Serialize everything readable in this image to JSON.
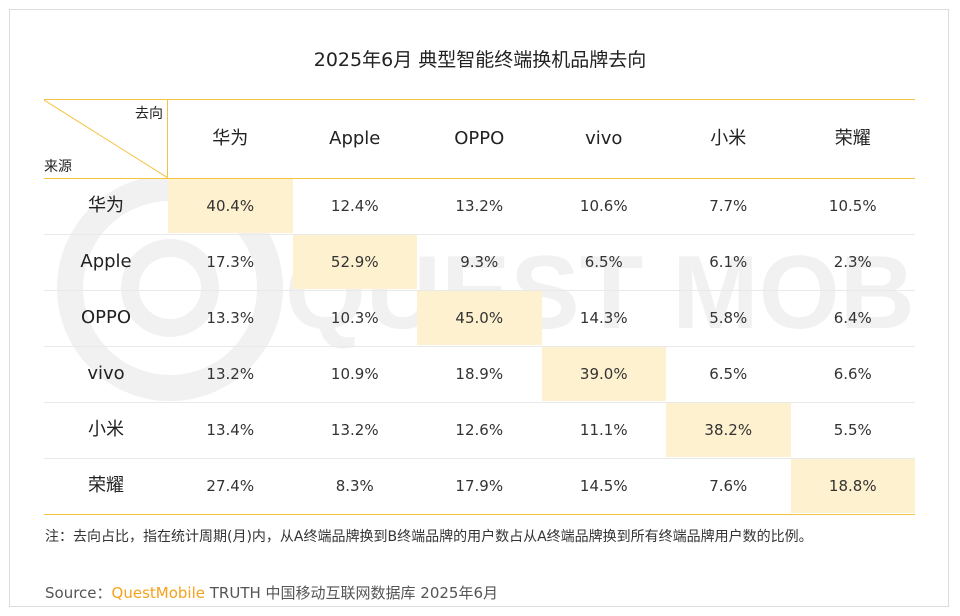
{
  "title": "2025年6月 典型智能终端换机品牌去向",
  "corner": {
    "to_label": "去向",
    "from_label": "来源"
  },
  "watermark_text": "QUEST MOBILE",
  "colors": {
    "accent": "#f5c242",
    "highlight": "#fef1cf",
    "brand": "#f5a21c"
  },
  "chart_data": {
    "type": "table",
    "title": "2025年6月 典型智能终端换机品牌去向",
    "columns": [
      "华为",
      "Apple",
      "OPPO",
      "vivo",
      "小米",
      "荣耀"
    ],
    "rows": [
      {
        "label": "华为",
        "values": [
          "40.4%",
          "12.4%",
          "13.2%",
          "10.6%",
          "7.7%",
          "10.5%"
        ]
      },
      {
        "label": "Apple",
        "values": [
          "17.3%",
          "52.9%",
          "9.3%",
          "6.5%",
          "6.1%",
          "2.3%"
        ]
      },
      {
        "label": "OPPO",
        "values": [
          "13.3%",
          "10.3%",
          "45.0%",
          "14.3%",
          "5.8%",
          "6.4%"
        ]
      },
      {
        "label": "vivo",
        "values": [
          "13.2%",
          "10.9%",
          "18.9%",
          "39.0%",
          "6.5%",
          "6.6%"
        ]
      },
      {
        "label": "小米",
        "values": [
          "13.4%",
          "13.2%",
          "12.6%",
          "11.1%",
          "38.2%",
          "5.5%"
        ]
      },
      {
        "label": "荣耀",
        "values": [
          "27.4%",
          "8.3%",
          "17.9%",
          "14.5%",
          "7.6%",
          "18.8%"
        ]
      }
    ],
    "highlight": "diagonal"
  },
  "note": "注：去向占比，指在统计周期(月)内，从A终端品牌换到B终端品牌的用户数占从A终端品牌换到所有终端品牌用户数的比例。",
  "source": {
    "prefix": "Source：",
    "brand": "QuestMobile",
    "rest": " TRUTH 中国移动互联网数据库 2025年6月"
  }
}
